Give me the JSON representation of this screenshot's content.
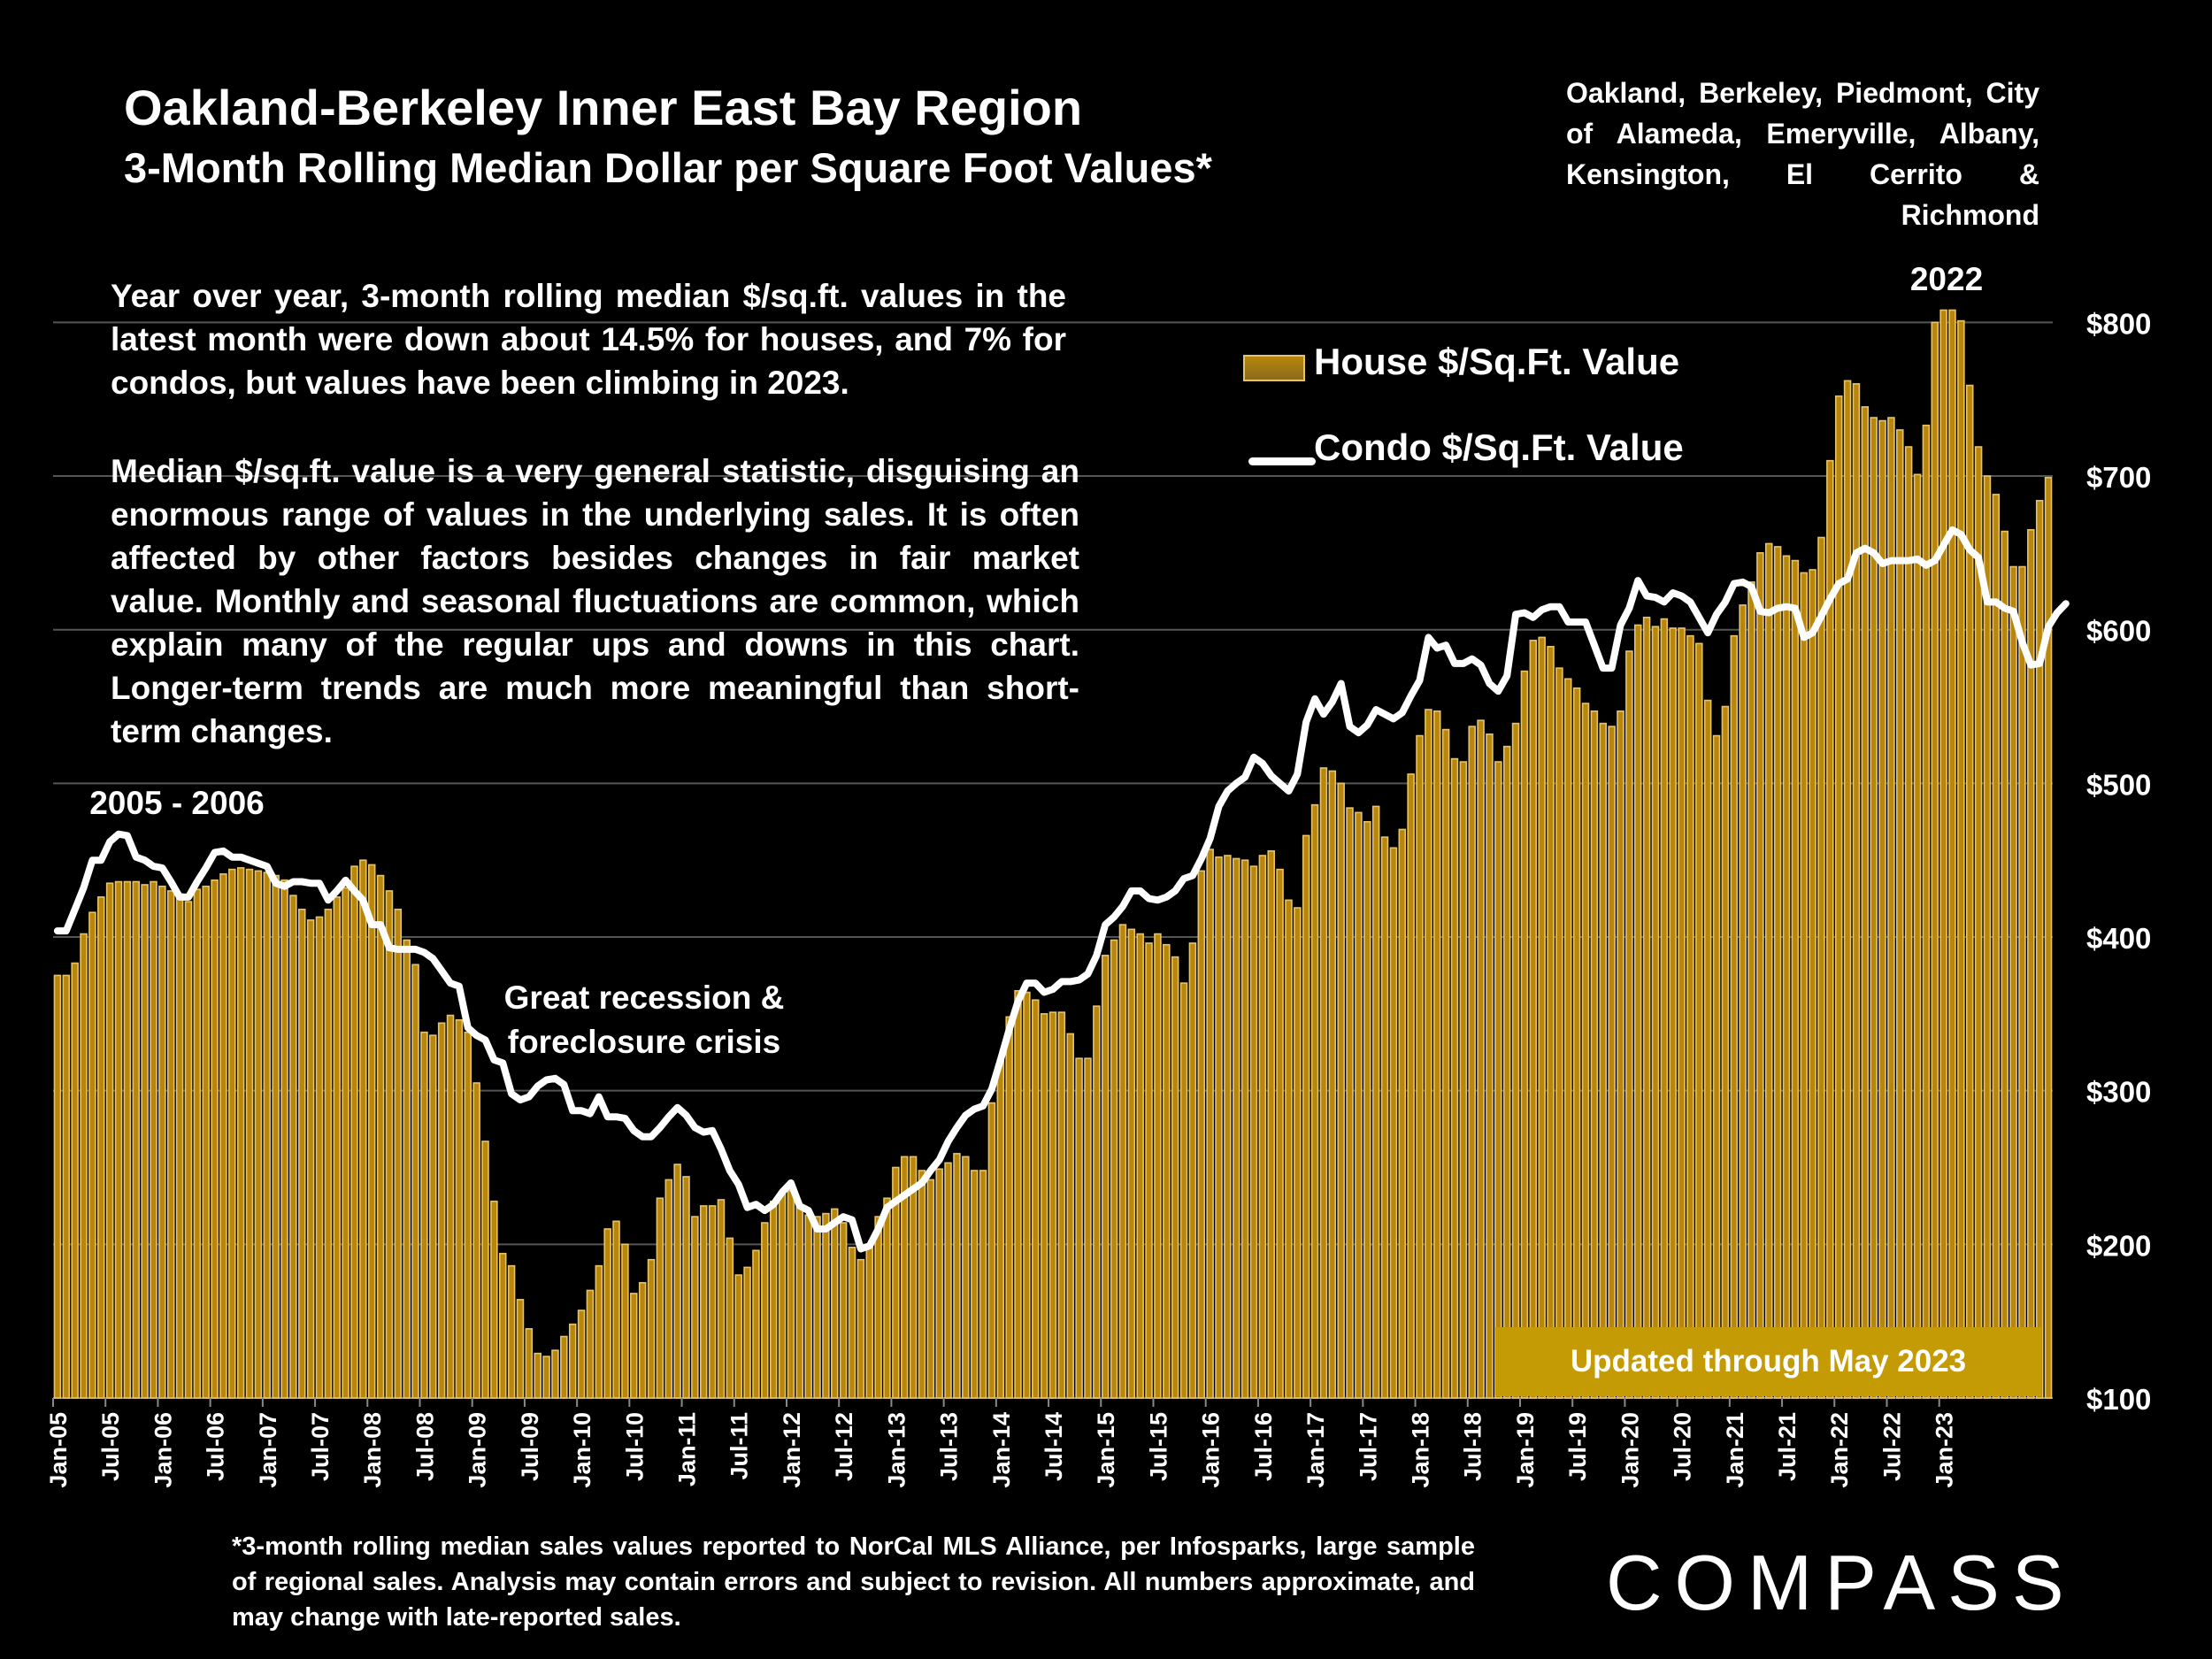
{
  "header": {
    "title": "Oakland-Berkeley Inner East Bay Region",
    "subtitle": "3-Month Rolling Median Dollar per Square Foot Values*",
    "region_note": "Oakland, Berkeley, Piedmont, City of Alameda, Emeryville, Albany, Kensington, El Cerrito & Richmond"
  },
  "commentary": {
    "p1": "Year over year, 3-month rolling median $/sq.ft. values in the latest month were down about 14.5% for houses, and 7% for condos, but values have been climbing in 2023.",
    "p2": "Median $/sq.ft. value is a very general statistic, disguising an enormous range of values in the underlying sales. It is often affected by other factors besides changes in fair market value. Monthly and seasonal fluctuations are common, which explain many of the regular ups and downs in this chart. Longer-term trends are much more meaningful than short-term changes."
  },
  "updated_badge": "Updated through May 2023",
  "footnote": "*3-month rolling median sales values reported to NorCal MLS Alliance, per Infosparks, large sample of regional sales. Analysis may contain errors and subject to revision. All numbers approximate, and may change with late-reported sales.",
  "logo": "COMPASS",
  "colors": {
    "background": "#000000",
    "house_bar": "#b8860b",
    "house_bar_edge": "#e6c36a",
    "condo_line": "#ffffff",
    "badge": "#c49a05",
    "grid": "#555555"
  },
  "chart_data": {
    "type": "bar",
    "title": "Oakland-Berkeley Inner East Bay Region",
    "subtitle": "3-Month Rolling Median Dollar per Square Foot Values*",
    "start_month": "Jan-05",
    "end_month": "May-23",
    "x_tick_labels": [
      "Jan-05",
      "Jul-05",
      "Jan-06",
      "Jul-06",
      "Jan-07",
      "Jul-07",
      "Jan-08",
      "Jul-08",
      "Jan-09",
      "Jul-09",
      "Jan-10",
      "Jul-10",
      "Jan-11",
      "Jul-11",
      "Jan-12",
      "Jul-12",
      "Jan-13",
      "Jul-13",
      "Jan-14",
      "Jul-14",
      "Jan-15",
      "Jul-15",
      "Jan-16",
      "Jul-16",
      "Jan-17",
      "Jul-17",
      "Jan-18",
      "Jul-18",
      "Jan-19",
      "Jul-19",
      "Jan-20",
      "Jul-20",
      "Jan-21",
      "Jul-21",
      "Jan-22",
      "Jul-22",
      "Jan-23"
    ],
    "y_ticks": [
      100,
      200,
      300,
      400,
      500,
      600,
      700,
      800
    ],
    "y_tick_labels": [
      "$100",
      "$200",
      "$300",
      "$400",
      "$500",
      "$600",
      "$700",
      "$800"
    ],
    "ylim": [
      100,
      830
    ],
    "grid": true,
    "legend_placement": "top-center",
    "series": [
      {
        "name": "House $/Sq.Ft. Value",
        "type": "bar",
        "values": [
          375,
          375,
          383,
          402,
          416,
          426,
          435,
          436,
          436,
          436,
          434,
          436,
          433,
          430,
          428,
          423,
          431,
          433,
          437,
          441,
          444,
          445,
          444,
          443,
          442,
          440,
          437,
          427,
          418,
          411,
          413,
          418,
          426,
          432,
          446,
          450,
          447,
          440,
          430,
          418,
          398,
          382,
          338,
          336,
          344,
          349,
          346,
          338,
          305,
          267,
          228,
          194,
          186,
          164,
          145,
          129,
          127,
          131,
          140,
          148,
          157,
          170,
          186,
          210,
          215,
          200,
          168,
          175,
          190,
          230,
          242,
          252,
          244,
          218,
          225,
          225,
          229,
          204,
          180,
          185,
          196,
          214,
          228,
          234,
          235,
          224,
          219,
          218,
          220,
          223,
          214,
          198,
          190,
          199,
          218,
          230,
          250,
          257,
          257,
          248,
          242,
          249,
          253,
          259,
          257,
          248,
          248,
          292,
          320,
          348,
          365,
          364,
          359,
          350,
          351,
          351,
          337,
          321,
          321,
          355,
          388,
          398,
          408,
          405,
          402,
          396,
          402,
          395,
          387,
          370,
          396,
          443,
          457,
          452,
          453,
          451,
          450,
          446,
          453,
          456,
          444,
          424,
          419,
          466,
          486,
          510,
          508,
          500,
          484,
          481,
          475,
          485,
          465,
          458,
          470,
          506,
          531,
          548,
          547,
          535,
          516,
          514,
          537,
          541,
          532,
          514,
          524,
          539,
          573,
          593,
          595,
          589,
          575,
          568,
          562,
          552,
          547,
          539,
          537,
          547,
          586,
          603,
          608,
          602,
          607,
          601,
          601,
          596,
          591,
          554,
          531,
          550,
          596,
          616,
          631,
          650,
          656,
          654,
          648,
          645,
          637,
          639,
          660,
          710,
          752,
          762,
          760,
          745,
          738,
          736,
          738,
          730,
          719,
          701,
          733,
          800,
          808,
          808,
          801,
          759,
          719,
          700,
          688,
          664,
          641,
          641,
          665,
          684,
          699
        ]
      },
      {
        "name": "Condo $/Sq.Ft. Value",
        "type": "line",
        "values": [
          404,
          404,
          418,
          432,
          450,
          450,
          462,
          467,
          466,
          452,
          450,
          446,
          445,
          436,
          426,
          426,
          436,
          445,
          455,
          456,
          452,
          452,
          450,
          448,
          446,
          435,
          433,
          436,
          436,
          435,
          435,
          424,
          430,
          437,
          430,
          424,
          408,
          408,
          393,
          392,
          392,
          392,
          390,
          386,
          378,
          370,
          368,
          341,
          336,
          333,
          320,
          318,
          298,
          294,
          296,
          303,
          307,
          308,
          304,
          287,
          287,
          285,
          296,
          283,
          283,
          282,
          274,
          270,
          270,
          276,
          283,
          289,
          284,
          276,
          273,
          274,
          262,
          248,
          239,
          224,
          226,
          222,
          226,
          234,
          240,
          225,
          222,
          210,
          210,
          214,
          218,
          216,
          197,
          199,
          210,
          224,
          228,
          232,
          236,
          240,
          248,
          255,
          267,
          276,
          284,
          288,
          290,
          301,
          320,
          340,
          358,
          370,
          370,
          364,
          366,
          371,
          371,
          372,
          376,
          388,
          408,
          413,
          420,
          430,
          430,
          425,
          424,
          426,
          430,
          438,
          440,
          451,
          464,
          485,
          495,
          500,
          504,
          517,
          513,
          505,
          500,
          495,
          506,
          540,
          555,
          545,
          553,
          565,
          537,
          533,
          538,
          548,
          545,
          542,
          546,
          557,
          567,
          595,
          588,
          590,
          578,
          578,
          581,
          577,
          565,
          560,
          570,
          610,
          611,
          608,
          613,
          615,
          615,
          605,
          605,
          605,
          590,
          575,
          575,
          603,
          614,
          632,
          622,
          621,
          618,
          624,
          622,
          618,
          608,
          598,
          610,
          618,
          630,
          631,
          628,
          612,
          611,
          614,
          615,
          614,
          595,
          598,
          609,
          620,
          630,
          633,
          650,
          653,
          650,
          643,
          645,
          645,
          645,
          646,
          642,
          645,
          655,
          665,
          662,
          652,
          647,
          618,
          618,
          614,
          612,
          592,
          577,
          578,
          602,
          611,
          617
        ]
      }
    ],
    "annotations": [
      "2005 - 2006",
      "Great recession & foreclosure crisis",
      "2022"
    ]
  }
}
